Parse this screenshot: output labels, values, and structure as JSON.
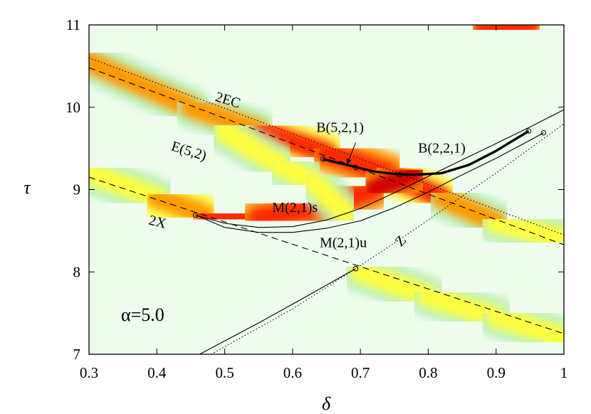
{
  "chart_data": {
    "type": "heatmap",
    "title": "",
    "xlabel": "δ",
    "ylabel": "τ",
    "xlim": [
      0.3,
      1.0
    ],
    "ylim": [
      7,
      11
    ],
    "xticks": [
      0.3,
      0.4,
      0.5,
      0.6,
      0.7,
      0.8,
      0.9,
      1.0
    ],
    "xtick_labels": [
      "0.3",
      "0.4",
      "0.5",
      "0.6",
      "0.7",
      "0.8",
      "0.9",
      "1"
    ],
    "yticks": [
      7,
      8,
      9,
      10,
      11
    ],
    "ytick_labels": [
      "7",
      "8",
      "9",
      "10",
      "11"
    ],
    "grid": false,
    "annotation": "α=5.0",
    "colormap": [
      "#ffffff",
      "#b8f0b8",
      "#ffff40",
      "#ff9a00",
      "#ff2a00",
      "#d40000"
    ],
    "heat_bands": [
      {
        "points": [
          [
            0.3,
            10.55
          ],
          [
            0.45,
            10.0
          ],
          [
            0.55,
            9.72
          ],
          [
            0.65,
            9.45
          ],
          [
            0.74,
            9.2
          ],
          [
            0.82,
            8.9
          ],
          [
            0.9,
            8.6
          ],
          [
            1.0,
            8.4
          ]
        ],
        "intensity": [
          0.55,
          0.6,
          0.65,
          0.75,
          0.95,
          0.7,
          0.5,
          0.45
        ]
      },
      {
        "points": [
          [
            0.3,
            9.2
          ],
          [
            0.4,
            8.9
          ],
          [
            0.47,
            8.7
          ],
          [
            0.55,
            8.65
          ],
          [
            0.65,
            8.8
          ],
          [
            0.72,
            9.0
          ],
          [
            0.78,
            9.2
          ]
        ],
        "intensity": [
          0.4,
          0.55,
          0.8,
          0.85,
          0.85,
          0.9,
          0.9
        ]
      },
      {
        "points": [
          [
            0.88,
            10.95
          ],
          [
            0.95,
            11.0
          ]
        ],
        "intensity": [
          0.75,
          0.85
        ]
      },
      {
        "points": [
          [
            0.7,
            8.0
          ],
          [
            0.8,
            7.7
          ],
          [
            0.9,
            7.45
          ],
          [
            1.0,
            7.2
          ]
        ],
        "intensity": [
          0.45,
          0.45,
          0.4,
          0.35
        ]
      },
      {
        "points": [
          [
            0.5,
            9.7
          ],
          [
            0.58,
            9.3
          ],
          [
            0.63,
            9.1
          ],
          [
            0.68,
            8.7
          ]
        ],
        "intensity": [
          0.3,
          0.35,
          0.35,
          0.3
        ]
      }
    ],
    "series": [
      {
        "name": "2EC",
        "style": "dotted",
        "x": [
          0.3,
          1.0
        ],
        "y": [
          10.6,
          8.45
        ]
      },
      {
        "name": "E(5,2)",
        "style": "dashed",
        "x": [
          0.3,
          1.0
        ],
        "y": [
          10.48,
          8.33
        ]
      },
      {
        "name": "2X",
        "style": "dashed",
        "x": [
          0.3,
          1.0
        ],
        "y": [
          9.15,
          7.25
        ]
      },
      {
        "name": "Z",
        "style": "dotted",
        "x": [
          0.48,
          0.6,
          0.693,
          0.75,
          0.8,
          0.85,
          0.9,
          0.95,
          1.0
        ],
        "y": [
          7.0,
          7.55,
          8.04,
          8.35,
          8.63,
          8.92,
          9.2,
          9.5,
          9.8
        ]
      },
      {
        "name": "",
        "style": "solid-thin",
        "x": [
          0.463,
          0.55,
          0.62,
          0.693
        ],
        "y": [
          7.0,
          7.38,
          7.7,
          8.04
        ]
      },
      {
        "name": "M(2,1)s",
        "style": "solid-thin",
        "x": [
          0.457,
          0.5,
          0.55,
          0.6,
          0.65,
          0.7,
          0.75,
          0.8,
          0.85,
          0.9,
          0.95,
          1.0
        ],
        "y": [
          8.69,
          8.59,
          8.54,
          8.55,
          8.63,
          8.77,
          8.96,
          9.16,
          9.36,
          9.56,
          9.76,
          9.97
        ]
      },
      {
        "name": "M(2,1)u",
        "style": "solid-thin",
        "x": [
          0.457,
          0.5,
          0.55,
          0.6,
          0.65,
          0.7,
          0.75,
          0.8,
          0.85,
          0.9,
          0.95,
          0.97
        ],
        "y": [
          8.69,
          8.54,
          8.48,
          8.48,
          8.53,
          8.62,
          8.78,
          8.97,
          9.18,
          9.38,
          9.6,
          9.69
        ]
      },
      {
        "name": "B(2,2,1)",
        "style": "solid-thick",
        "x": [
          0.645,
          0.69,
          0.72,
          0.75,
          0.78,
          0.82,
          0.86,
          0.9,
          0.948
        ],
        "y": [
          9.37,
          9.28,
          9.22,
          9.19,
          9.18,
          9.2,
          9.3,
          9.47,
          9.71
        ]
      }
    ],
    "markers": [
      {
        "x": 0.457,
        "y": 8.69
      },
      {
        "x": 0.645,
        "y": 9.37
      },
      {
        "x": 0.693,
        "y": 9.27
      },
      {
        "x": 0.758,
        "y": 9.18
      },
      {
        "x": 0.948,
        "y": 9.71
      },
      {
        "x": 0.97,
        "y": 9.69
      },
      {
        "x": 0.693,
        "y": 8.04
      }
    ],
    "curve_labels": [
      {
        "text": "2EC",
        "x": 0.485,
        "y": 10.08,
        "rotate": 17
      },
      {
        "text": "E(5,2)",
        "x": 0.42,
        "y": 9.48,
        "rotate": 17
      },
      {
        "text": "B(5,2,1)",
        "x": 0.635,
        "y": 9.7,
        "rotate": 0
      },
      {
        "text": "B(2,2,1)",
        "x": 0.785,
        "y": 9.45,
        "rotate": 0
      },
      {
        "text": "M(2,1)s",
        "x": 0.57,
        "y": 8.73,
        "rotate": 0
      },
      {
        "text": "2X",
        "x": 0.387,
        "y": 8.58,
        "rotate": 14
      },
      {
        "text": "M(2,1)u",
        "x": 0.64,
        "y": 8.3,
        "rotate": 0
      },
      {
        "text": "Z",
        "x": 0.76,
        "y": 8.3,
        "rotate": -48
      }
    ],
    "arrow": {
      "from": [
        0.693,
        9.57
      ],
      "to": [
        0.68,
        9.3
      ]
    }
  }
}
